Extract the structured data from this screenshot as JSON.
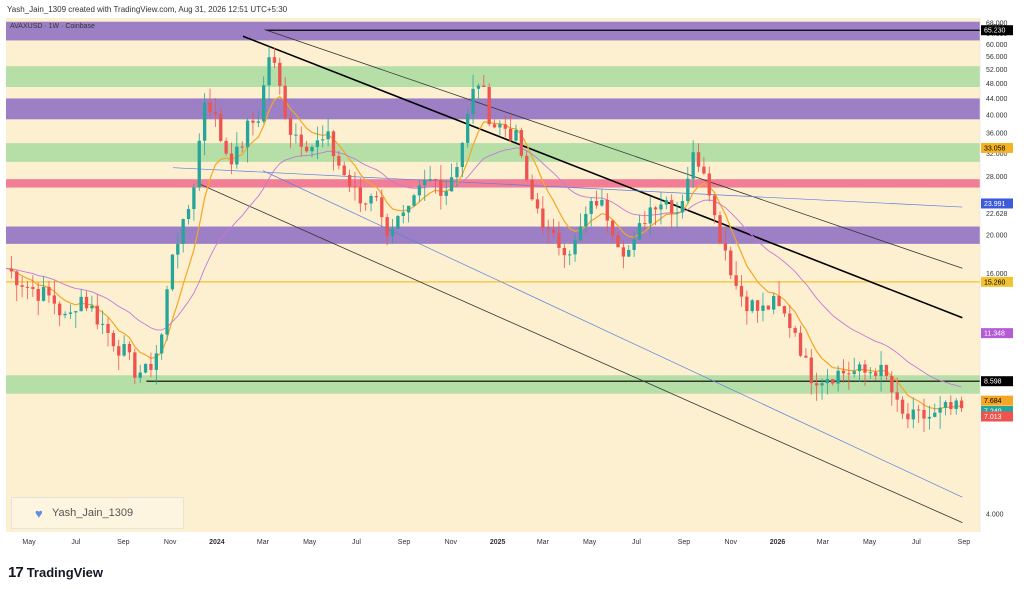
{
  "header": {
    "created_by": "Yash_Jain_1309 created with TradingView.com, Aug 31, 2026 12:51 UTC+5:30"
  },
  "symbol": {
    "label": "AVAXUSD · 1W · Coinbase"
  },
  "currency": "USD",
  "watermark": {
    "text": "Yash_Jain_1309"
  },
  "brand": {
    "name": "TradingView",
    "logo": "tv-logo-icon"
  },
  "colors": {
    "bg": "#fdf0d0",
    "zone_purple": "#8c6bc4",
    "zone_green": "#a9dca0",
    "zone_pink": "#ee6a8c",
    "yellow_line": "#f2c230",
    "candle_up": "#26a69a",
    "candle_down": "#ef5350",
    "ma_orange": "#f5a623",
    "ma_purple": "#c07ad8",
    "trend_blue": "#5b7fe0"
  },
  "chart_data": {
    "type": "candlestick",
    "y_scale": "log",
    "ylim": [
      3.6,
      70
    ],
    "y_ticks": [
      "68.000",
      "64.000",
      "60.000",
      "56.000",
      "52.000",
      "48.000",
      "44.000",
      "40.000",
      "36.000",
      "32.000",
      "28.000",
      "22.628",
      "20.000",
      "16.000",
      "4.000"
    ],
    "x_ticks": [
      "May",
      "Jul",
      "Sep",
      "Nov",
      "2024",
      "Mar",
      "May",
      "Jul",
      "Sep",
      "Nov",
      "2025",
      "Mar",
      "May",
      "Jul",
      "Sep",
      "Nov",
      "2026",
      "Mar",
      "May",
      "Jul",
      "Sep"
    ],
    "x_tick_dates": [
      "2023-05-01",
      "2023-07-01",
      "2023-09-01",
      "2023-11-01",
      "2024-01-01",
      "2024-03-01",
      "2024-05-01",
      "2024-07-01",
      "2024-09-01",
      "2024-11-01",
      "2025-01-01",
      "2025-03-01",
      "2025-05-01",
      "2025-07-01",
      "2025-09-01",
      "2025-11-01",
      "2026-01-01",
      "2026-03-01",
      "2026-05-01",
      "2026-07-01",
      "2026-09-01"
    ],
    "zones": [
      {
        "kind": "purple",
        "low": 61.5,
        "high": 68.5
      },
      {
        "kind": "green",
        "low": 47.0,
        "high": 53.0
      },
      {
        "kind": "purple",
        "low": 39.0,
        "high": 44.0
      },
      {
        "kind": "green",
        "low": 30.5,
        "high": 34.0
      },
      {
        "kind": "pink",
        "low": 26.3,
        "high": 27.6
      },
      {
        "kind": "purple",
        "low": 19.0,
        "high": 21.0
      },
      {
        "kind": "green",
        "low": 8.0,
        "high": 8.9
      }
    ],
    "horizontal_levels": [
      {
        "value": 65.23,
        "color": "#000000",
        "from": "2024-03-05"
      },
      {
        "value": 15.26,
        "color": "#f2c230",
        "from": "2023-04-01"
      },
      {
        "value": 8.598,
        "color": "#000000",
        "from": "2023-10-01"
      }
    ],
    "price_labels": [
      {
        "value": 65.23,
        "text": "65.230",
        "bg": "#000000",
        "fg": "#ffffff"
      },
      {
        "value": 33.058,
        "text": "33.058",
        "bg": "#f5b324",
        "fg": "#000000"
      },
      {
        "value": 23.991,
        "text": "23.991",
        "bg": "#3d5ad8",
        "fg": "#ffffff"
      },
      {
        "value": 15.26,
        "text": "15.260",
        "bg": "#f2c230",
        "fg": "#000000"
      },
      {
        "value": 11.348,
        "text": "11.348",
        "bg": "#b35cd6",
        "fg": "#ffffff"
      },
      {
        "value": 8.598,
        "text": "8.598",
        "bg": "#000000",
        "fg": "#ffffff"
      },
      {
        "value": 7.684,
        "text": "7.684",
        "bg": "#f5a623",
        "fg": "#000000"
      },
      {
        "value": 7.24,
        "text": "7.240",
        "bg": "#26a69a",
        "fg": "#ffffff"
      },
      {
        "value": 7.013,
        "text": "7.013",
        "bg": "#ef5350",
        "fg": "#ffffff"
      }
    ],
    "trendlines": [
      {
        "from": [
          "2024-03-03",
          65.5
        ],
        "to": [
          "2026-08-30",
          16.5
        ],
        "color": "#333333",
        "width": 0.8
      },
      {
        "from": [
          "2024-02-04",
          63.0
        ],
        "to": [
          "2026-08-30",
          12.4
        ],
        "color": "#000000",
        "width": 1.6
      },
      {
        "from": [
          "2023-12-10",
          26.8
        ],
        "to": [
          "2026-08-30",
          3.8
        ],
        "color": "#333333",
        "width": 0.8
      },
      {
        "from": [
          "2023-11-05",
          29.5
        ],
        "to": [
          "2026-08-30",
          23.5
        ],
        "color": "#5b7fe0",
        "width": 0.7
      },
      {
        "from": [
          "2024-03-01",
          29.0
        ],
        "to": [
          "2026-08-30",
          4.4
        ],
        "color": "#5b7fe0",
        "width": 0.7
      }
    ],
    "anchors": [
      [
        "2023-04-01",
        16.5
      ],
      [
        "2023-05-01",
        14.8
      ],
      [
        "2023-06-01",
        13.8
      ],
      [
        "2023-06-20",
        12.0
      ],
      [
        "2023-07-05",
        14.2
      ],
      [
        "2023-07-20",
        13.2
      ],
      [
        "2023-08-10",
        11.5
      ],
      [
        "2023-09-01",
        10.2
      ],
      [
        "2023-09-15",
        9.2
      ],
      [
        "2023-10-01",
        9.0
      ],
      [
        "2023-10-20",
        10.8
      ],
      [
        "2023-11-05",
        19.0
      ],
      [
        "2023-11-20",
        21.0
      ],
      [
        "2023-12-05",
        29.0
      ],
      [
        "2023-12-15",
        44.0
      ],
      [
        "2023-12-25",
        42.0
      ],
      [
        "2024-01-10",
        33.0
      ],
      [
        "2024-01-25",
        31.0
      ],
      [
        "2024-02-10",
        37.0
      ],
      [
        "2024-02-25",
        40.0
      ],
      [
        "2024-03-10",
        58.0
      ],
      [
        "2024-03-20",
        49.0
      ],
      [
        "2024-04-05",
        37.0
      ],
      [
        "2024-04-20",
        35.0
      ],
      [
        "2024-05-05",
        33.5
      ],
      [
        "2024-05-25",
        34.5
      ],
      [
        "2024-06-10",
        29.5
      ],
      [
        "2024-06-25",
        26.0
      ],
      [
        "2024-07-10",
        23.5
      ],
      [
        "2024-07-25",
        27.0
      ],
      [
        "2024-08-05",
        20.5
      ],
      [
        "2024-08-20",
        21.5
      ],
      [
        "2024-09-05",
        22.0
      ],
      [
        "2024-09-25",
        26.5
      ],
      [
        "2024-10-10",
        27.5
      ],
      [
        "2024-10-25",
        26.0
      ],
      [
        "2024-11-10",
        31.0
      ],
      [
        "2024-11-20",
        37.0
      ],
      [
        "2024-12-05",
        50.0
      ],
      [
        "2024-12-15",
        44.0
      ],
      [
        "2024-12-25",
        38.0
      ],
      [
        "2025-01-15",
        37.0
      ],
      [
        "2025-01-30",
        33.5
      ],
      [
        "2025-02-10",
        25.0
      ],
      [
        "2025-02-25",
        23.0
      ],
      [
        "2025-03-10",
        19.5
      ],
      [
        "2025-03-25",
        19.0
      ],
      [
        "2025-04-10",
        18.5
      ],
      [
        "2025-04-25",
        22.0
      ],
      [
        "2025-05-10",
        24.5
      ],
      [
        "2025-05-25",
        22.5
      ],
      [
        "2025-06-10",
        19.0
      ],
      [
        "2025-06-25",
        18.0
      ],
      [
        "2025-07-10",
        22.0
      ],
      [
        "2025-07-25",
        24.5
      ],
      [
        "2025-08-10",
        24.5
      ],
      [
        "2025-08-25",
        23.0
      ],
      [
        "2025-09-05",
        28.0
      ],
      [
        "2025-09-15",
        32.0
      ],
      [
        "2025-10-01",
        29.0
      ],
      [
        "2025-10-12",
        21.5
      ],
      [
        "2025-10-25",
        18.5
      ],
      [
        "2025-11-10",
        14.5
      ],
      [
        "2025-11-25",
        13.5
      ],
      [
        "2025-12-10",
        12.8
      ],
      [
        "2025-12-25",
        13.5
      ],
      [
        "2026-01-10",
        12.5
      ],
      [
        "2026-01-25",
        11.5
      ],
      [
        "2026-02-10",
        9.0
      ],
      [
        "2026-02-25",
        8.8
      ],
      [
        "2026-03-15",
        9.0
      ],
      [
        "2026-04-05",
        9.1
      ],
      [
        "2026-04-25",
        9.0
      ],
      [
        "2026-05-10",
        9.3
      ],
      [
        "2026-05-25",
        8.6
      ],
      [
        "2026-06-10",
        7.0
      ],
      [
        "2026-06-25",
        6.9
      ],
      [
        "2026-07-10",
        7.0
      ],
      [
        "2026-07-25",
        7.0
      ],
      [
        "2026-08-10",
        7.3
      ],
      [
        "2026-08-30",
        7.24
      ]
    ]
  }
}
